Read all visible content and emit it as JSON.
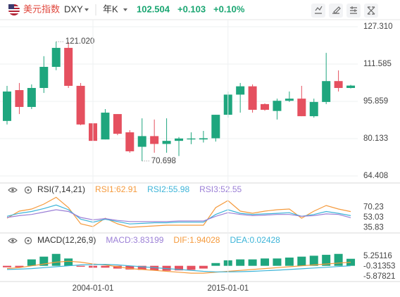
{
  "header": {
    "name": "美元指数",
    "symbol": "DXY",
    "period": "年K",
    "price": "102.504",
    "change": "+0.103",
    "change_pct": "+0.10%"
  },
  "chart_data": [
    {
      "type": "candlestick",
      "up_color": "#1fa67e",
      "down_color": "#e5505f",
      "open": [
        87.6,
        100.6,
        93.5,
        101.5,
        110.4,
        118.4,
        102.4,
        86.6,
        79.8,
        90.5,
        82.8,
        76.7,
        81.2,
        77.9,
        79.2,
        79.8,
        79.8,
        80.3,
        90.2,
        98.7,
        102.2,
        94.7,
        91.8,
        96.1,
        97.0,
        89.6,
        95.6,
        104.4,
        101.5
      ],
      "high": [
        102.4,
        103.6,
        103.0,
        114.9,
        121.02,
        120.8,
        103.6,
        87.5,
        92.6,
        90.5,
        83.7,
        88.7,
        88.2,
        88.7,
        80.8,
        82.8,
        83.4,
        90.2,
        100.0,
        103.6,
        103.0,
        95.0,
        97.0,
        100.0,
        102.4,
        97.0,
        116.3,
        108.9,
        102.8
      ],
      "low": [
        86.1,
        90.5,
        92.6,
        99.4,
        109.0,
        101.5,
        85.8,
        79.2,
        79.8,
        81.6,
        74.2,
        70.698,
        74.2,
        74.2,
        72.8,
        77.8,
        78.5,
        78.9,
        89.0,
        91.1,
        91.1,
        91.9,
        88.2,
        95.6,
        89.6,
        89.0,
        94.7,
        100.0,
        101.3
      ],
      "close": [
        100.0,
        93.5,
        101.5,
        110.4,
        118.4,
        102.4,
        86.1,
        79.2,
        91.1,
        82.2,
        74.8,
        81.2,
        77.9,
        79.2,
        80.2,
        80.2,
        80.3,
        90.2,
        98.7,
        102.2,
        92.3,
        92.3,
        96.1,
        97.0,
        89.6,
        95.6,
        104.4,
        101.5,
        102.504
      ],
      "high_label": "121.020",
      "low_label": "70.698",
      "ylim": [
        61.44,
        130.28
      ],
      "yticks": [
        {
          "value": 127.31,
          "label": "127.310"
        },
        111.585,
        95.859,
        80.133,
        64.408
      ],
      "grid": true
    },
    {
      "type": "line",
      "title": "RSI(7,14,21)",
      "ylim": [
        28.0,
        87.4
      ],
      "yticks": [
        70.23,
        53.03,
        35.83
      ],
      "series": [
        {
          "name": "RSI1:62.91",
          "color": "#f59a3c",
          "values": [
            51.8,
            63.6,
            67.2,
            75.5,
            87.0,
            69.6,
            42.3,
            37.5,
            51.8,
            42.3,
            36.3,
            37.5,
            38.7,
            39.9,
            39.9,
            39.9,
            39.9,
            69.6,
            81.5,
            63.6,
            60.1,
            63.6,
            66.0,
            67.2,
            51.8,
            63.6,
            73.1,
            67.2,
            62.91
          ]
        },
        {
          "name": "RSI2:55.98",
          "color": "#3cb4d8",
          "values": [
            55,
            60,
            63,
            68,
            74,
            66,
            50,
            45,
            50,
            46,
            42,
            43,
            44,
            44,
            45,
            45,
            45,
            58,
            66,
            60,
            58,
            59,
            60,
            61,
            55,
            58,
            63,
            60,
            55.98
          ]
        },
        {
          "name": "RSI3:52.55",
          "color": "#9b7fd6",
          "values": [
            53,
            56,
            58,
            62,
            66,
            63,
            53,
            49,
            51,
            48,
            46,
            46,
            46,
            46,
            47,
            47,
            47,
            55,
            61,
            58,
            56,
            57,
            58,
            58,
            55,
            56,
            59,
            58,
            52.55
          ]
        }
      ]
    },
    {
      "type": "macd",
      "title": "MACD(12,26,9)",
      "ylim": [
        -8.56,
        9.09
      ],
      "yticks": [
        5.25116,
        -0.31353,
        -5.87821
      ],
      "categories": [
        null,
        null,
        null,
        null,
        null,
        null,
        null,
        "2004-01-01",
        null,
        null,
        null,
        null,
        null,
        null,
        null,
        null,
        null,
        null,
        "2015-01-01",
        null,
        null,
        null,
        null,
        null,
        null,
        null,
        null,
        null,
        null
      ],
      "up_color": "#1fa67e",
      "down_color": "#e5505f",
      "series": [
        {
          "name": "MACD:3.83199",
          "color": "#9b7fd6",
          "values": [
            -0.8,
            -0.8,
            3.5,
            5,
            6.5,
            4,
            -0.5,
            -1,
            -1,
            -1.5,
            -2,
            -2.2,
            -2.5,
            -2.7,
            -2.5,
            -2.2,
            -1.5,
            1.5,
            3,
            3.5,
            3.5,
            4,
            4,
            4.5,
            5,
            5.5,
            6,
            6.5,
            3.83199
          ]
        },
        {
          "name": "DIF:1.94028",
          "color": "#f59a3c",
          "values": [
            -1.5,
            -1,
            0,
            1,
            2,
            2.5,
            2,
            1,
            0.5,
            -0.5,
            -1.5,
            -2,
            -2.5,
            -3,
            -3.5,
            -4,
            -4,
            -3.5,
            -3,
            -2.5,
            -2,
            -1.5,
            -1,
            -0.5,
            0,
            0.5,
            1,
            1.5,
            1.94028
          ]
        },
        {
          "name": "DEA:0.02428",
          "color": "#3cb4d8",
          "values": [
            -2,
            -1.8,
            -1.5,
            -1,
            -0.5,
            0,
            0.5,
            0.7,
            0.8,
            0.5,
            0,
            -0.5,
            -1,
            -1.5,
            -2,
            -2.5,
            -3,
            -3.3,
            -3.3,
            -3.2,
            -3,
            -2.7,
            -2.4,
            -2,
            -1.6,
            -1.2,
            -0.8,
            -0.4,
            0.02428
          ]
        }
      ]
    }
  ]
}
